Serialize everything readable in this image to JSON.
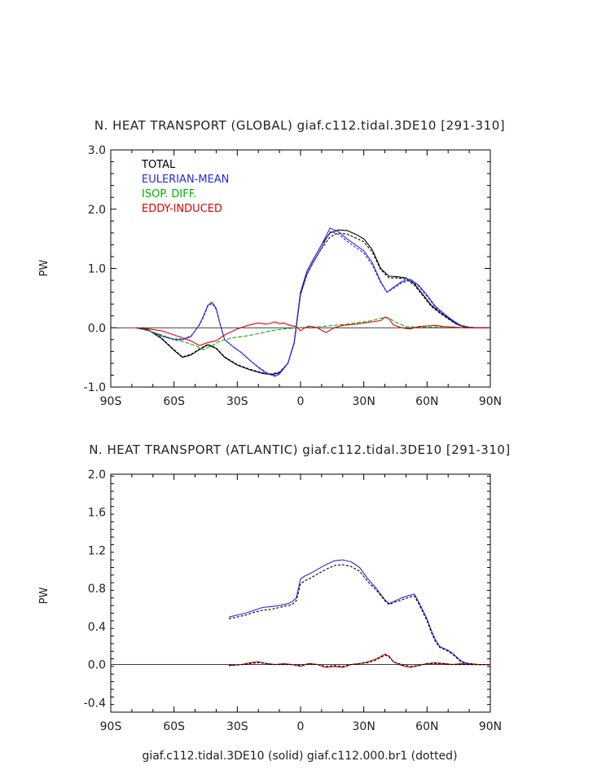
{
  "chart_data": [
    {
      "type": "line",
      "title": "N. HEAT TRANSPORT (GLOBAL) giaf.c112.tidal.3DE10 [291-310]",
      "ylabel": "PW",
      "xlabel": "",
      "xlim": [
        -90,
        90
      ],
      "ylim": [
        -1.0,
        3.0
      ],
      "xticks": [
        -90,
        -60,
        -30,
        0,
        30,
        60,
        90
      ],
      "xtick_labels": [
        "90S",
        "60S",
        "30S",
        "0",
        "30N",
        "60N",
        "90N"
      ],
      "yticks": [
        -1.0,
        0.0,
        1.0,
        2.0,
        3.0
      ],
      "ytick_labels": [
        "-1.0",
        "0.0",
        "1.0",
        "2.0",
        "3.0"
      ],
      "legend": [
        "TOTAL",
        "EULERIAN-MEAN",
        "ISOP. DIFF.",
        "EDDY-INDUCED"
      ],
      "legend_colors": [
        "#000000",
        "#2828e0",
        "#00b400",
        "#e00000"
      ],
      "legend_position": "top-left",
      "series": [
        {
          "name": "TOTAL",
          "color": "#000000",
          "style": "solid",
          "x": [
            -78,
            -72,
            -66,
            -60,
            -56,
            -52,
            -48,
            -44,
            -40,
            -36,
            -30,
            -24,
            -18,
            -14,
            -10,
            -6,
            -3,
            0,
            3,
            6,
            10,
            14,
            18,
            22,
            26,
            30,
            34,
            38,
            42,
            46,
            50,
            54,
            58,
            62,
            66,
            70,
            74,
            78,
            82,
            86,
            90
          ],
          "y": [
            0,
            -0.04,
            -0.18,
            -0.38,
            -0.5,
            -0.46,
            -0.37,
            -0.29,
            -0.35,
            -0.5,
            -0.63,
            -0.71,
            -0.77,
            -0.79,
            -0.76,
            -0.6,
            -0.25,
            0.6,
            0.95,
            1.15,
            1.4,
            1.6,
            1.65,
            1.64,
            1.58,
            1.5,
            1.32,
            1.0,
            0.87,
            0.86,
            0.84,
            0.74,
            0.56,
            0.38,
            0.26,
            0.16,
            0.06,
            0.01,
            0,
            0,
            0
          ]
        },
        {
          "name": "TOTAL (dotted)",
          "color": "#000000",
          "style": "dotted",
          "x": [
            -78,
            -72,
            -66,
            -60,
            -56,
            -52,
            -48,
            -44,
            -40,
            -36,
            -30,
            -24,
            -18,
            -14,
            -10,
            -6,
            -3,
            0,
            3,
            6,
            10,
            14,
            18,
            22,
            26,
            30,
            34,
            38,
            42,
            46,
            50,
            54,
            58,
            62,
            66,
            70,
            74,
            78,
            82,
            86,
            90
          ],
          "y": [
            0,
            -0.04,
            -0.17,
            -0.37,
            -0.49,
            -0.45,
            -0.36,
            -0.28,
            -0.34,
            -0.49,
            -0.62,
            -0.7,
            -0.76,
            -0.78,
            -0.75,
            -0.6,
            -0.26,
            0.56,
            0.9,
            1.1,
            1.34,
            1.53,
            1.6,
            1.58,
            1.52,
            1.45,
            1.28,
            0.98,
            0.84,
            0.84,
            0.82,
            0.72,
            0.54,
            0.36,
            0.25,
            0.15,
            0.06,
            0.01,
            0,
            0,
            0
          ]
        },
        {
          "name": "EULERIAN-MEAN",
          "color": "#2828e0",
          "style": "solid",
          "x": [
            -78,
            -72,
            -66,
            -60,
            -56,
            -52,
            -48,
            -46,
            -44,
            -42,
            -40,
            -38,
            -36,
            -32,
            -28,
            -24,
            -20,
            -16,
            -12,
            -10,
            -6,
            -3,
            0,
            3,
            6,
            10,
            14,
            18,
            22,
            26,
            30,
            34,
            38,
            41,
            44,
            48,
            52,
            56,
            60,
            64,
            68,
            72,
            76,
            80,
            84,
            90
          ],
          "y": [
            0,
            -0.05,
            -0.14,
            -0.2,
            -0.2,
            -0.15,
            0.05,
            0.2,
            0.38,
            0.43,
            0.33,
            0.05,
            -0.2,
            -0.32,
            -0.42,
            -0.55,
            -0.67,
            -0.77,
            -0.82,
            -0.78,
            -0.6,
            -0.25,
            0.6,
            0.95,
            1.15,
            1.4,
            1.68,
            1.62,
            1.5,
            1.4,
            1.3,
            1.1,
            0.78,
            0.6,
            0.68,
            0.78,
            0.82,
            0.72,
            0.55,
            0.36,
            0.24,
            0.13,
            0.04,
            0.01,
            0,
            0
          ]
        },
        {
          "name": "EULERIAN-MEAN (dotted)",
          "color": "#2828e0",
          "style": "dotted",
          "x": [
            -78,
            -72,
            -66,
            -60,
            -56,
            -52,
            -48,
            -46,
            -44,
            -42,
            -40,
            -38,
            -36,
            -32,
            -28,
            -24,
            -20,
            -16,
            -12,
            -10,
            -6,
            -3,
            0,
            3,
            6,
            10,
            14,
            18,
            22,
            26,
            30,
            34,
            38,
            41,
            44,
            48,
            52,
            56,
            60,
            64,
            68,
            72,
            76,
            80,
            84,
            90
          ],
          "y": [
            0,
            -0.05,
            -0.13,
            -0.19,
            -0.19,
            -0.14,
            0.04,
            0.18,
            0.36,
            0.41,
            0.31,
            0.04,
            -0.2,
            -0.32,
            -0.42,
            -0.55,
            -0.66,
            -0.76,
            -0.8,
            -0.76,
            -0.6,
            -0.26,
            0.56,
            0.9,
            1.1,
            1.35,
            1.62,
            1.58,
            1.46,
            1.36,
            1.26,
            1.06,
            0.76,
            0.6,
            0.66,
            0.76,
            0.8,
            0.7,
            0.53,
            0.34,
            0.23,
            0.12,
            0.04,
            0.01,
            0,
            0
          ]
        },
        {
          "name": "ISOP. DIFF.",
          "color": "#00b400",
          "style": "dashed",
          "x": [
            -78,
            -72,
            -66,
            -60,
            -55,
            -50,
            -46,
            -42,
            -38,
            -32,
            -26,
            -20,
            -14,
            -8,
            -2,
            4,
            10,
            16,
            22,
            28,
            34,
            38,
            40,
            42,
            46,
            50,
            56,
            62,
            68,
            74,
            80,
            90
          ],
          "y": [
            0,
            -0.05,
            -0.12,
            -0.2,
            -0.24,
            -0.3,
            -0.37,
            -0.3,
            -0.22,
            -0.17,
            -0.14,
            -0.1,
            -0.05,
            -0.02,
            0,
            0.01,
            0.02,
            0.04,
            0.06,
            0.09,
            0.12,
            0.16,
            0.18,
            0.16,
            0.08,
            0.02,
            0.01,
            0.01,
            0.02,
            0.01,
            0,
            0
          ]
        },
        {
          "name": "EDDY-INDUCED",
          "color": "#e00000",
          "style": "solid",
          "x": [
            -78,
            -72,
            -66,
            -60,
            -56,
            -52,
            -48,
            -44,
            -40,
            -36,
            -30,
            -24,
            -20,
            -16,
            -12,
            -10,
            -8,
            -5,
            -2,
            0,
            2,
            4,
            8,
            12,
            16,
            20,
            26,
            30,
            34,
            38,
            40,
            42,
            44,
            48,
            52,
            56,
            60,
            64,
            68,
            72,
            78,
            84,
            90
          ],
          "y": [
            0,
            -0.02,
            -0.05,
            -0.12,
            -0.17,
            -0.22,
            -0.3,
            -0.25,
            -0.22,
            -0.12,
            -0.02,
            0.05,
            0.08,
            0.06,
            0.1,
            0.07,
            0.08,
            0.04,
            0.02,
            -0.05,
            0.0,
            0.03,
            0.0,
            -0.08,
            0.0,
            0.04,
            0.06,
            0.08,
            0.1,
            0.12,
            0.18,
            0.15,
            0.05,
            0.0,
            -0.02,
            0.02,
            0.03,
            0.04,
            0.02,
            0.01,
            0,
            0,
            0
          ]
        }
      ]
    },
    {
      "type": "line",
      "title": "N. HEAT TRANSPORT (ATLANTIC) giaf.c112.tidal.3DE10 [291-310]",
      "ylabel": "PW",
      "xlabel": "giaf.c112.tidal.3DE10 (solid) giaf.c112.000.br1 (dotted)",
      "xlim": [
        -90,
        90
      ],
      "ylim": [
        -0.5,
        2.0
      ],
      "xticks": [
        -90,
        -60,
        -30,
        0,
        30,
        60,
        90
      ],
      "xtick_labels": [
        "90S",
        "60S",
        "30S",
        "0",
        "30N",
        "60N",
        "90N"
      ],
      "yticks": [
        -0.4,
        0.0,
        0.4,
        0.8,
        1.2,
        1.6,
        2.0
      ],
      "ytick_labels": [
        "-0.4",
        "0.0",
        "0.4",
        "0.8",
        "1.2",
        "1.6",
        "2.0"
      ],
      "series": [
        {
          "name": "EULERIAN-MEAN",
          "color": "#2828e0",
          "style": "solid",
          "x": [
            -34,
            -30,
            -26,
            -22,
            -18,
            -14,
            -10,
            -6,
            -4,
            -2,
            0,
            2,
            4,
            8,
            12,
            16,
            20,
            24,
            28,
            32,
            36,
            40,
            42,
            44,
            48,
            52,
            54,
            56,
            60,
            62,
            64,
            66,
            68,
            70,
            72,
            74,
            76,
            78,
            80,
            84,
            90
          ],
          "y": [
            0.5,
            0.52,
            0.54,
            0.57,
            0.6,
            0.61,
            0.62,
            0.64,
            0.66,
            0.7,
            0.9,
            0.93,
            0.95,
            1.0,
            1.05,
            1.09,
            1.1,
            1.08,
            1.02,
            0.9,
            0.8,
            0.68,
            0.64,
            0.66,
            0.7,
            0.73,
            0.74,
            0.66,
            0.48,
            0.36,
            0.26,
            0.19,
            0.17,
            0.15,
            0.12,
            0.08,
            0.04,
            0.02,
            0.01,
            0,
            0
          ]
        },
        {
          "name": "EULERIAN-MEAN (dotted)",
          "color": "#000000",
          "style": "dotted",
          "x": [
            -34,
            -30,
            -26,
            -22,
            -18,
            -14,
            -10,
            -6,
            -4,
            -2,
            0,
            2,
            4,
            8,
            12,
            16,
            20,
            24,
            28,
            32,
            36,
            40,
            42,
            44,
            48,
            52,
            54,
            56,
            60,
            62,
            64,
            66,
            68,
            70,
            72,
            74,
            76,
            78,
            80,
            84,
            90
          ],
          "y": [
            0.48,
            0.5,
            0.52,
            0.55,
            0.57,
            0.58,
            0.6,
            0.62,
            0.63,
            0.67,
            0.85,
            0.88,
            0.9,
            0.95,
            1.0,
            1.04,
            1.05,
            1.03,
            0.98,
            0.87,
            0.78,
            0.67,
            0.63,
            0.65,
            0.68,
            0.71,
            0.72,
            0.64,
            0.46,
            0.34,
            0.24,
            0.18,
            0.16,
            0.14,
            0.11,
            0.07,
            0.03,
            0.01,
            0.01,
            0,
            0
          ]
        },
        {
          "name": "EDDY-INDUCED",
          "color": "#e00000",
          "style": "solid",
          "x": [
            -34,
            -28,
            -24,
            -20,
            -16,
            -12,
            -8,
            -4,
            0,
            4,
            8,
            12,
            16,
            20,
            24,
            28,
            32,
            36,
            40,
            42,
            44,
            48,
            52,
            56,
            60,
            64,
            68,
            72,
            76,
            80,
            90
          ],
          "y": [
            -0.01,
            0.0,
            0.02,
            0.03,
            0.01,
            0.0,
            0.01,
            0.0,
            -0.02,
            0.01,
            0.0,
            -0.03,
            -0.02,
            -0.03,
            0.0,
            0.01,
            0.03,
            0.06,
            0.11,
            0.09,
            0.03,
            -0.01,
            -0.03,
            -0.01,
            0.01,
            0.02,
            0.01,
            0.0,
            0.01,
            0,
            0
          ]
        },
        {
          "name": "EDDY-INDUCED (dotted)",
          "color": "#000000",
          "style": "dotted",
          "x": [
            -34,
            -28,
            -24,
            -20,
            -16,
            -12,
            -8,
            -4,
            0,
            4,
            8,
            12,
            16,
            20,
            24,
            28,
            32,
            36,
            40,
            42,
            44,
            48,
            52,
            56,
            60,
            64,
            68,
            72,
            76,
            80,
            90
          ],
          "y": [
            -0.01,
            0.0,
            0.01,
            0.02,
            0.01,
            0.0,
            0.0,
            0.0,
            -0.01,
            0.01,
            0.0,
            -0.02,
            -0.01,
            -0.02,
            0.0,
            0.01,
            0.02,
            0.05,
            0.1,
            0.08,
            0.03,
            0.0,
            -0.02,
            -0.01,
            0.01,
            0.01,
            0.01,
            0.0,
            0.0,
            0,
            0
          ]
        }
      ]
    }
  ]
}
